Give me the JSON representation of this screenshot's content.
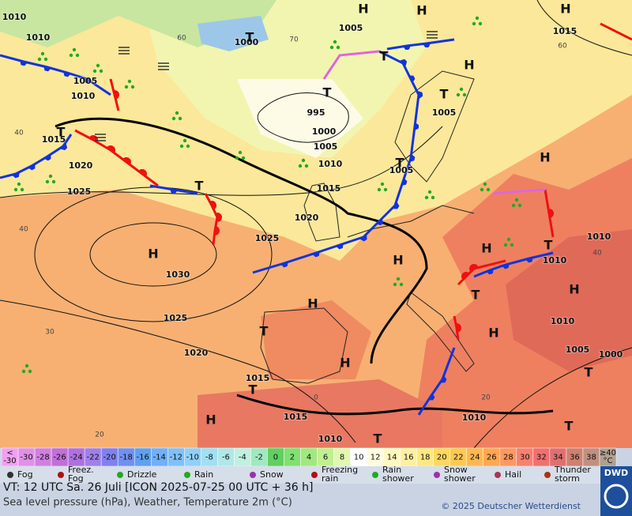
{
  "map": {
    "isobar_labels": [
      "1010",
      "1010",
      "1005",
      "1010",
      "1015",
      "1020",
      "1025",
      "1000",
      "1005",
      "995",
      "1000",
      "1005",
      "1010",
      "1015",
      "1020",
      "1025",
      "1030",
      "1025",
      "1020",
      "1015",
      "1015",
      "1010",
      "1015",
      "1005",
      "1005",
      "1010",
      "1010",
      "1010",
      "1005",
      "1000",
      "1010"
    ],
    "pressure_centers": [
      "H",
      "H",
      "H",
      "H",
      "H",
      "H",
      "H",
      "H",
      "H",
      "H",
      "H",
      "H",
      "H",
      "T",
      "T",
      "T",
      "T",
      "T",
      "T",
      "T",
      "T",
      "T",
      "T",
      "T",
      "T",
      "T",
      "T"
    ],
    "temperature_labels": [
      "60",
      "70",
      "60",
      "40",
      "40",
      "40",
      "30",
      "20",
      "20",
      "0"
    ]
  },
  "legend": {
    "temperature_scale": {
      "below_label": [
        "<",
        "-30"
      ],
      "labels": [
        "-30",
        "-28",
        "-26",
        "-24",
        "-22",
        "-20",
        "-18",
        "-16",
        "-14",
        "-12",
        "-10",
        "-8",
        "-6",
        "-4",
        "-2",
        "0",
        "2",
        "4",
        "6",
        "8",
        "10",
        "12",
        "14",
        "16",
        "18",
        "20",
        "22",
        "24",
        "26",
        "28",
        "30",
        "32",
        "34",
        "36",
        "38"
      ],
      "above_label": [
        "≥40",
        "°C"
      ],
      "colors": [
        "#f0a0f0",
        "#e090e8",
        "#d080e0",
        "#c070d8",
        "#b070e0",
        "#a080e8",
        "#8080f0",
        "#7090f0",
        "#60a0f0",
        "#70b0f8",
        "#80c0f8",
        "#90d0f8",
        "#a0e0f0",
        "#b0e8e8",
        "#c0f0e0",
        "#a0e8c0",
        "#60d060",
        "#80e070",
        "#a0e880",
        "#c0f090",
        "#e0f8b0",
        "#ffffff",
        "#fffde0",
        "#fff8c0",
        "#fff0a0",
        "#ffe880",
        "#ffd860",
        "#ffc850",
        "#ffb850",
        "#ffa850",
        "#ff9860",
        "#f88070",
        "#f07070",
        "#e07070",
        "#d08070",
        "#c09080",
        "#b0a090"
      ]
    },
    "weather": [
      {
        "label": [
          "Fog"
        ]
      },
      {
        "label": [
          "Freez.",
          "Fog"
        ]
      },
      {
        "label": [
          "Drizzle"
        ]
      },
      {
        "label": [
          "Rain"
        ]
      },
      {
        "label": [
          "Snow"
        ]
      },
      {
        "label": [
          "Freezing",
          "rain"
        ]
      },
      {
        "label": [
          "Rain",
          "shower"
        ]
      },
      {
        "label": [
          "Snow",
          "shower"
        ]
      },
      {
        "label": [
          "Hail"
        ]
      },
      {
        "label": [
          "Thunder",
          "storm"
        ]
      }
    ]
  },
  "footer": {
    "valid_time": "VT: 12 UTC Sa.  26 Juli [ICON 2025-07-25  00 UTC + 36 h]",
    "description": "Sea level pressure (hPa), Weather, Temperature 2m (°C)",
    "copyright": "© 2025 Deutscher Wetterdienst",
    "logo": "DWD"
  }
}
